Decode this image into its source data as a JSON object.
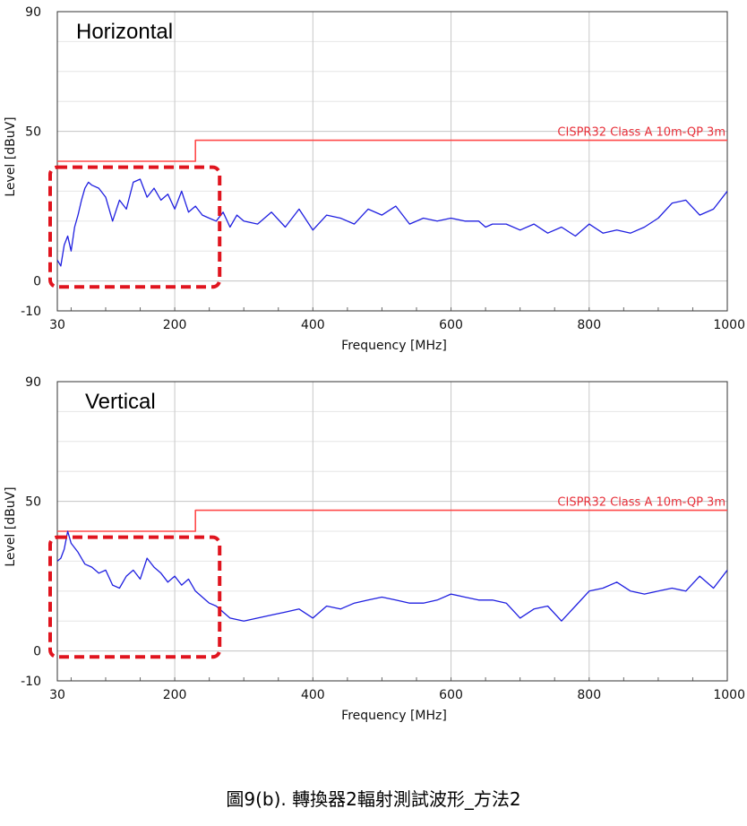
{
  "caption": "圖9(b). 轉換器2輻射測試波形_方法2",
  "colors": {
    "trace": "#1f1fe0",
    "limit": "#ff4a4a",
    "highlight": "#e0141e",
    "grid": "#c8c8c8"
  },
  "chart_data": [
    {
      "type": "line",
      "title": "Horizontal",
      "xlabel": "Frequency [MHz]",
      "ylabel": "Level [dBuV]",
      "xlim": [
        30,
        1000
      ],
      "ylim": [
        -10,
        90
      ],
      "x_ticks": [
        "30",
        "200",
        "400",
        "600",
        "800",
        "1000"
      ],
      "y_ticks": [
        "90",
        "50",
        "0",
        "-10"
      ],
      "grid": true,
      "series": [
        {
          "name": "CISPR32 Class A 10m-QP 3m",
          "x": [
            30,
            230,
            230,
            1000
          ],
          "y": [
            40,
            40,
            47,
            47
          ]
        },
        {
          "x": [
            30,
            35,
            40,
            45,
            50,
            55,
            60,
            65,
            70,
            75,
            80,
            90,
            100,
            110,
            120,
            130,
            140,
            150,
            160,
            170,
            180,
            190,
            200,
            210,
            220,
            230,
            240,
            250,
            260,
            270,
            280,
            290,
            300,
            320,
            340,
            360,
            380,
            400,
            420,
            440,
            460,
            480,
            500,
            520,
            540,
            560,
            580,
            600,
            620,
            640,
            650,
            660,
            680,
            700,
            720,
            740,
            760,
            780,
            800,
            820,
            840,
            860,
            880,
            900,
            920,
            940,
            960,
            980,
            1000
          ],
          "y": [
            7,
            5,
            12,
            15,
            10,
            18,
            22,
            27,
            31,
            33,
            32,
            31,
            28,
            20,
            27,
            24,
            33,
            34,
            28,
            31,
            27,
            29,
            24,
            30,
            23,
            25,
            22,
            21,
            20,
            23,
            18,
            22,
            20,
            19,
            23,
            18,
            24,
            17,
            22,
            21,
            19,
            24,
            22,
            25,
            19,
            21,
            20,
            21,
            20,
            20,
            18,
            19,
            19,
            17,
            19,
            16,
            18,
            15,
            19,
            16,
            17,
            16,
            18,
            21,
            26,
            27,
            22,
            24,
            30
          ]
        }
      ]
    },
    {
      "type": "line",
      "title": "Vertical",
      "xlabel": "Frequency [MHz]",
      "ylabel": "Level [dBuV]",
      "xlim": [
        30,
        1000
      ],
      "ylim": [
        -10,
        90
      ],
      "x_ticks": [
        "30",
        "200",
        "400",
        "600",
        "800",
        "1000"
      ],
      "y_ticks": [
        "90",
        "50",
        "0",
        "-10"
      ],
      "grid": true,
      "series": [
        {
          "name": "CISPR32 Class A 10m-QP 3m",
          "x": [
            30,
            230,
            230,
            1000
          ],
          "y": [
            40,
            40,
            47,
            47
          ]
        },
        {
          "x": [
            30,
            35,
            40,
            45,
            50,
            60,
            70,
            80,
            90,
            100,
            110,
            120,
            130,
            140,
            150,
            160,
            170,
            180,
            190,
            200,
            210,
            220,
            230,
            240,
            250,
            260,
            280,
            300,
            320,
            340,
            360,
            380,
            400,
            420,
            440,
            460,
            480,
            500,
            520,
            540,
            560,
            580,
            600,
            620,
            640,
            660,
            680,
            700,
            720,
            740,
            760,
            780,
            800,
            820,
            840,
            860,
            880,
            900,
            920,
            940,
            960,
            980,
            1000
          ],
          "y": [
            30,
            31,
            34,
            40,
            36,
            33,
            29,
            28,
            26,
            27,
            22,
            21,
            25,
            27,
            24,
            31,
            28,
            26,
            23,
            25,
            22,
            24,
            20,
            18,
            16,
            15,
            11,
            10,
            11,
            12,
            13,
            14,
            11,
            15,
            14,
            16,
            17,
            18,
            17,
            16,
            16,
            17,
            19,
            18,
            17,
            17,
            16,
            11,
            14,
            15,
            10,
            15,
            20,
            21,
            23,
            20,
            19,
            20,
            21,
            20,
            25,
            21,
            27
          ]
        }
      ]
    }
  ]
}
